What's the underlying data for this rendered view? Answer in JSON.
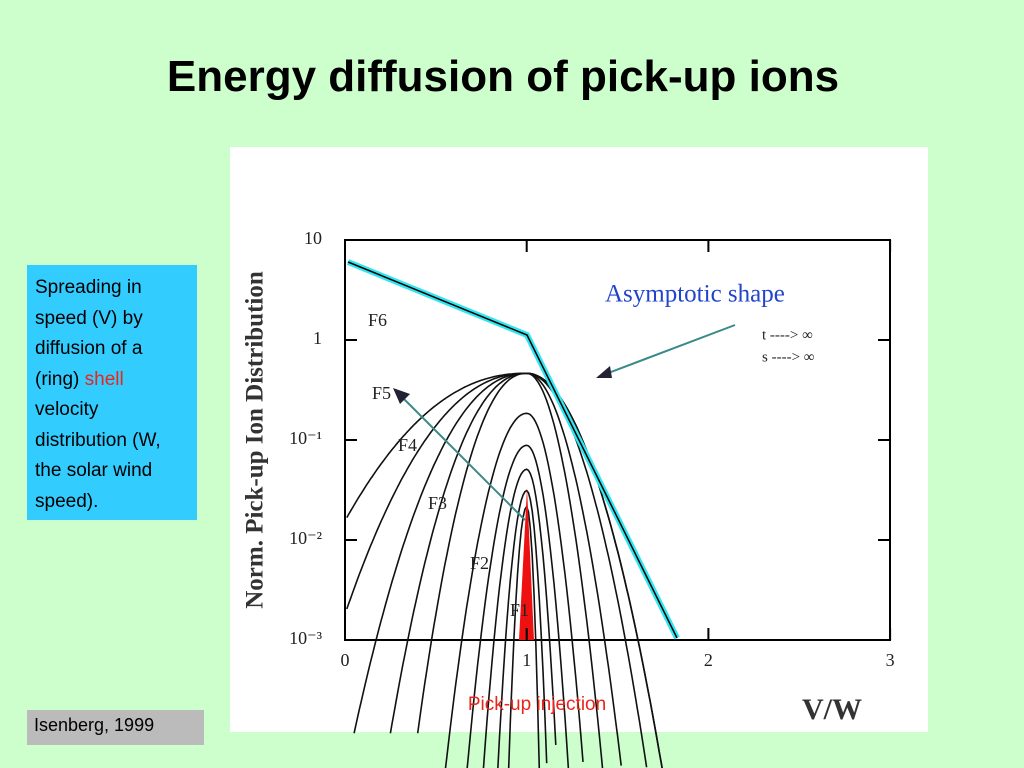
{
  "slide": {
    "title": "Energy diffusion of pick-up ions",
    "note": {
      "parts": [
        "Spreading in speed (V) by diffusion of a (ring) ",
        "shell",
        " velocity distribution (W, the solar wind speed)."
      ]
    },
    "source": "Isenberg, 1999",
    "figure": {
      "y_axis_label": "Norm. Pick-up Ion Distribution",
      "x_axis_label": "V/W",
      "y_tick_labels": [
        "10",
        "1",
        "10⁻¹",
        "10⁻²",
        "10⁻³"
      ],
      "x_tick_labels": [
        "0",
        "1",
        "2",
        "3"
      ],
      "asymptote_label": "Asymptotic shape",
      "limits": [
        "t ----> ∞",
        "s ----> ∞"
      ],
      "curve_labels": [
        "F1",
        "F2",
        "F3",
        "F4",
        "F5",
        "F6"
      ],
      "injection_label": "Pick-up injection"
    }
  }
}
